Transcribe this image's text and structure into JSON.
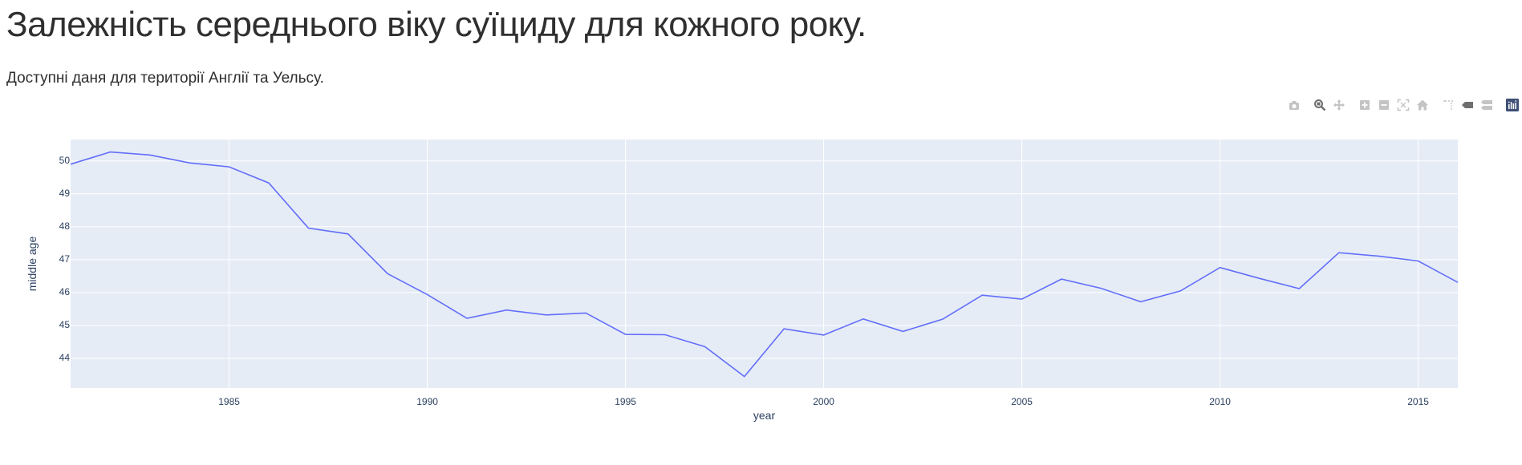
{
  "page": {
    "title": "Залежність середнього віку суїциду для кожного року.",
    "subtitle": "Доступні даня для території Англії та Уельсу."
  },
  "modebar": {
    "buttons": [
      {
        "name": "camera-icon",
        "group": 0,
        "active": false
      },
      {
        "name": "zoom-icon",
        "group": 1,
        "active": true
      },
      {
        "name": "pan-icon",
        "group": 1,
        "active": false
      },
      {
        "name": "zoom-in-icon",
        "group": 2,
        "active": false
      },
      {
        "name": "zoom-out-icon",
        "group": 2,
        "active": false
      },
      {
        "name": "autoscale-icon",
        "group": 2,
        "active": false
      },
      {
        "name": "home-icon",
        "group": 2,
        "active": false
      },
      {
        "name": "spikelines-icon",
        "group": 3,
        "active": false
      },
      {
        "name": "hover-closest-icon",
        "group": 3,
        "active": true
      },
      {
        "name": "hover-compare-icon",
        "group": 3,
        "active": false
      },
      {
        "name": "plotly-logo-icon",
        "group": 4,
        "active": false
      }
    ],
    "colors": {
      "inactive": "#c4c4c4",
      "active": "#6e6e6e",
      "logo": "#3f4f75"
    }
  },
  "chart_data": {
    "type": "line",
    "xlabel": "year",
    "ylabel": "middle age",
    "xlim": [
      1981,
      2016
    ],
    "ylim": [
      43.1,
      50.65
    ],
    "x_ticks": [
      1985,
      1990,
      1995,
      2000,
      2005,
      2010,
      2015
    ],
    "y_ticks": [
      44,
      45,
      46,
      47,
      48,
      49,
      50
    ],
    "grid": true,
    "background": "#e5ecf6",
    "series": [
      {
        "color": "#636efa",
        "x": [
          1981,
          1982,
          1983,
          1984,
          1985,
          1986,
          1987,
          1988,
          1989,
          1990,
          1991,
          1992,
          1993,
          1994,
          1995,
          1996,
          1997,
          1998,
          1999,
          2000,
          2001,
          2002,
          2003,
          2004,
          2005,
          2006,
          2007,
          2008,
          2009,
          2010,
          2011,
          2012,
          2013,
          2014,
          2015,
          2016
        ],
        "y": [
          49.9,
          50.27,
          50.18,
          49.94,
          49.82,
          49.33,
          47.96,
          47.78,
          46.57,
          45.94,
          45.22,
          45.47,
          45.32,
          45.38,
          44.73,
          44.72,
          44.36,
          43.45,
          44.9,
          44.71,
          45.2,
          44.82,
          45.19,
          45.92,
          45.8,
          46.41,
          46.13,
          45.72,
          46.05,
          46.76,
          46.43,
          46.12,
          47.21,
          47.11,
          46.96,
          46.31
        ]
      }
    ]
  }
}
